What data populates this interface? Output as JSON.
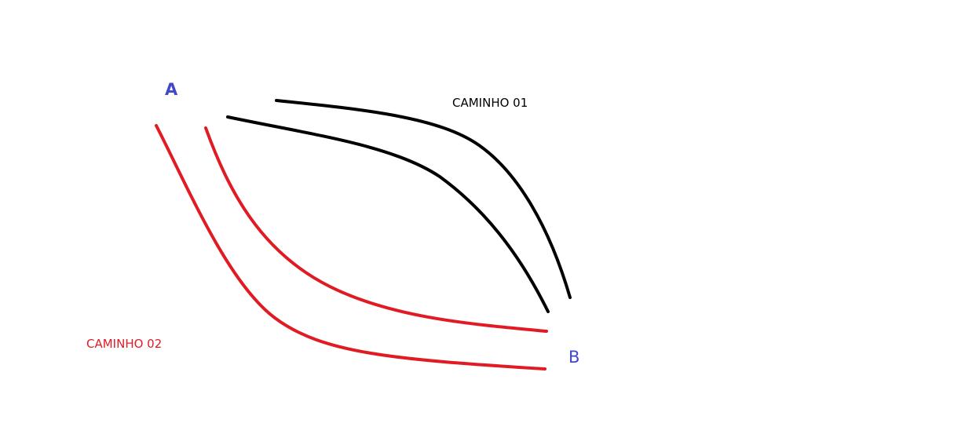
{
  "points": {
    "a": {
      "label": "A"
    },
    "b": {
      "label": "B"
    }
  },
  "paths": {
    "path_01": {
      "label": "CAMINHO 01",
      "color": "#000000"
    },
    "path_02": {
      "label": "CAMINHO 02",
      "color": "#e01b24"
    }
  },
  "colors": {
    "point_label": "#3f48cc",
    "background": "#ffffff"
  }
}
